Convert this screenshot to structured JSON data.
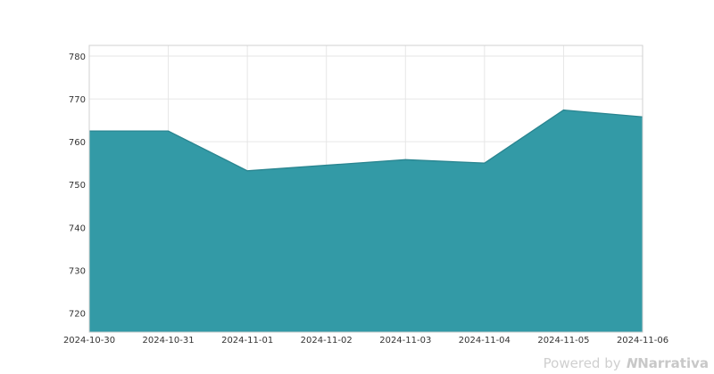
{
  "chart_data": {
    "type": "area",
    "x": [
      "2024-10-30",
      "2024-10-31",
      "2024-11-01",
      "2024-11-02",
      "2024-11-03",
      "2024-11-04",
      "2024-11-05",
      "2024-11-06"
    ],
    "series": [
      {
        "values": [
          762.5,
          762.5,
          753.2,
          754.5,
          755.8,
          755.0,
          767.4,
          765.8
        ]
      }
    ],
    "x_tick_labels": [
      "2024-10-30",
      "2024-10-31",
      "2024-11-01",
      "2024-11-02",
      "2024-11-03",
      "2024-11-04",
      "2024-11-05",
      "2024-11-06"
    ],
    "y_ticks": [
      720,
      730,
      740,
      750,
      760,
      770,
      780
    ],
    "ylim": [
      715.5,
      782.5
    ],
    "grid": true,
    "fill_color": "#339aa6",
    "line_color": "#2a8590",
    "title": "",
    "xlabel": "",
    "ylabel": ""
  },
  "watermark": {
    "prefix": "Powered by",
    "brand": "Narrativa",
    "logo_icon": "narrativa-logo-icon"
  }
}
